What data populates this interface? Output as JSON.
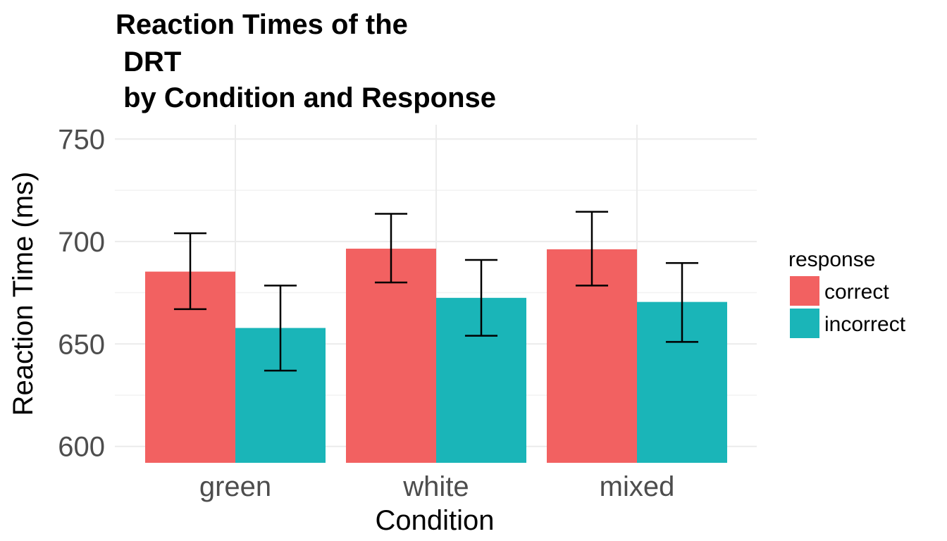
{
  "chart_data": {
    "type": "bar",
    "title_lines": [
      "Reaction Times of the",
      " DRT",
      " by Condition and Response"
    ],
    "xlabel": "Condition",
    "ylabel": "Reaction Time (ms)",
    "categories": [
      "green",
      "white",
      "mixed"
    ],
    "ylim": [
      592,
      757
    ],
    "yticks": [
      600,
      650,
      700,
      750
    ],
    "grid": true,
    "legend": {
      "title": "response",
      "position": "right"
    },
    "series": [
      {
        "name": "correct",
        "color": "#F26161",
        "values": [
          685.3,
          696.5,
          696.2
        ],
        "error_low": [
          667,
          680,
          678.5
        ],
        "error_high": [
          704,
          713.5,
          714.5
        ]
      },
      {
        "name": "incorrect",
        "color": "#1AB5B8",
        "values": [
          657.8,
          672.5,
          670.5
        ],
        "error_low": [
          637,
          654,
          651
        ],
        "error_high": [
          678.5,
          691,
          689.5
        ]
      }
    ]
  }
}
